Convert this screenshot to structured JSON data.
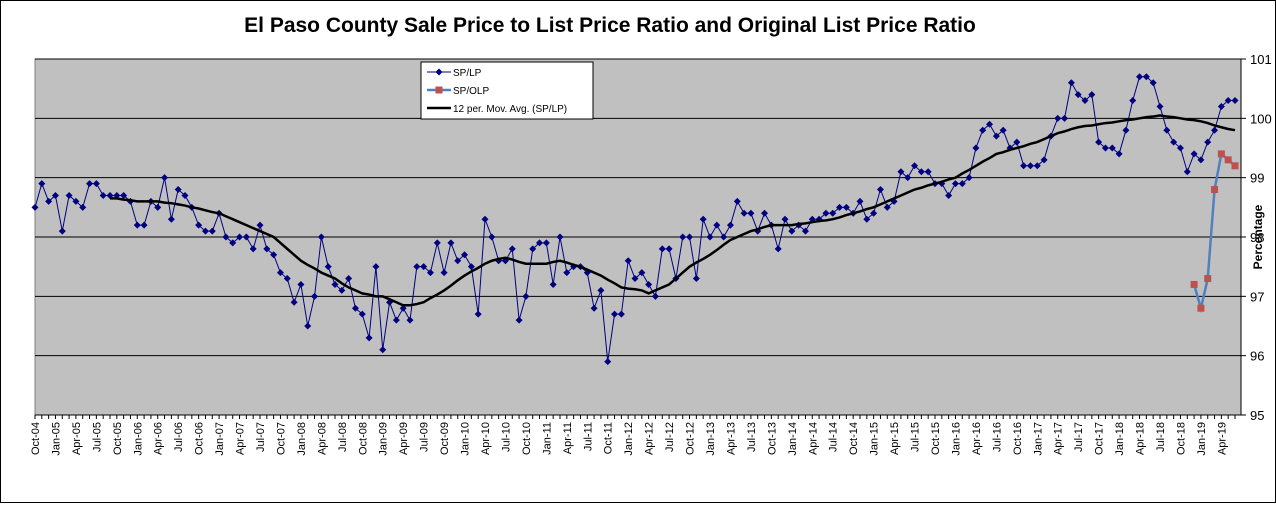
{
  "chart_data": {
    "type": "line",
    "title": "El Paso County Sale Price to List Price Ratio and Original List Price Ratio",
    "y_label": "Percentage",
    "ylim": [
      95,
      101
    ],
    "yticks": [
      95,
      96,
      97,
      98,
      99,
      100,
      101
    ],
    "grid": true,
    "y_axis_side": "right",
    "legend": "top-center",
    "plot_background": "#c0c0c0",
    "categories": [
      "Oct-04",
      null,
      null,
      "Jan-05",
      null,
      null,
      "Apr-05",
      null,
      null,
      "Jul-05",
      null,
      null,
      "Oct-05",
      null,
      null,
      "Jan-06",
      null,
      null,
      "Apr-06",
      null,
      null,
      "Jul-06",
      null,
      null,
      "Oct-06",
      null,
      null,
      "Jan-07",
      null,
      null,
      "Apr-07",
      null,
      null,
      "Jul-07",
      null,
      null,
      "Oct-07",
      null,
      null,
      "Jan-08",
      null,
      null,
      "Apr-08",
      null,
      null,
      "Jul-08",
      null,
      null,
      "Oct-08",
      null,
      null,
      "Jan-09",
      null,
      null,
      "Apr-09",
      null,
      null,
      "Jul-09",
      null,
      null,
      "Oct-09",
      null,
      null,
      "Jan-10",
      null,
      null,
      "Apr-10",
      null,
      null,
      "Jul-10",
      null,
      null,
      "Oct-10",
      null,
      null,
      "Jan-11",
      null,
      null,
      "Apr-11",
      null,
      null,
      "Jul-11",
      null,
      null,
      "Oct-11",
      null,
      null,
      "Jan-12",
      null,
      null,
      "Apr-12",
      null,
      null,
      "Jul-12",
      null,
      null,
      "Oct-12",
      null,
      null,
      "Jan-13",
      null,
      null,
      "Apr-13",
      null,
      null,
      "Jul-13",
      null,
      null,
      "Oct-13",
      null,
      null,
      "Jan-14",
      null,
      null,
      "Apr-14",
      null,
      null,
      "Jul-14",
      null,
      null,
      "Oct-14",
      null,
      null,
      "Jan-15",
      null,
      null,
      "Apr-15",
      null,
      null,
      "Jul-15",
      null,
      null,
      "Oct-15",
      null,
      null,
      "Jan-16",
      null,
      null,
      "Apr-16",
      null,
      null,
      "Jul-16",
      null,
      null,
      "Oct-16",
      null,
      null,
      "Jan-17",
      null,
      null,
      "Apr-17",
      null,
      null,
      "Jul-17",
      null,
      null,
      "Oct-17",
      null,
      null,
      "Jan-18",
      null,
      null,
      "Apr-18",
      null,
      null,
      "Jul-18",
      null,
      null,
      "Oct-18",
      null,
      null,
      "Jan-19",
      null,
      null,
      "Apr-19",
      null,
      null
    ],
    "series": [
      {
        "name": "SP/LP",
        "color": "#000080",
        "marker": "diamond",
        "marker_color": "#000080",
        "line_width": 1,
        "values": [
          98.5,
          98.9,
          98.6,
          98.7,
          98.1,
          98.7,
          98.6,
          98.5,
          98.9,
          98.9,
          98.7,
          98.7,
          98.7,
          98.7,
          98.6,
          98.2,
          98.2,
          98.6,
          98.5,
          99.0,
          98.3,
          98.8,
          98.7,
          98.5,
          98.2,
          98.1,
          98.1,
          98.4,
          98.0,
          97.9,
          98.0,
          98.0,
          97.8,
          98.2,
          97.8,
          97.7,
          97.4,
          97.3,
          96.9,
          97.2,
          96.5,
          97.0,
          98.0,
          97.5,
          97.2,
          97.1,
          97.3,
          96.8,
          96.7,
          96.3,
          97.5,
          96.1,
          96.9,
          96.6,
          96.8,
          96.6,
          97.5,
          97.5,
          97.4,
          97.9,
          97.4,
          97.9,
          97.6,
          97.7,
          97.5,
          96.7,
          98.3,
          98.0,
          97.6,
          97.6,
          97.8,
          96.6,
          97.0,
          97.8,
          97.9,
          97.9,
          97.2,
          98.0,
          97.4,
          97.5,
          97.5,
          97.4,
          96.8,
          97.1,
          95.9,
          96.7,
          96.7,
          97.6,
          97.3,
          97.4,
          97.2,
          97.0,
          97.8,
          97.8,
          97.3,
          98.0,
          98.0,
          97.3,
          98.3,
          98.0,
          98.2,
          98.0,
          98.2,
          98.6,
          98.4,
          98.4,
          98.1,
          98.4,
          98.2,
          97.8,
          98.3,
          98.1,
          98.2,
          98.1,
          98.3,
          98.3,
          98.4,
          98.4,
          98.5,
          98.5,
          98.4,
          98.6,
          98.3,
          98.4,
          98.8,
          98.5,
          98.6,
          99.1,
          99.0,
          99.2,
          99.1,
          99.1,
          98.9,
          98.9,
          98.7,
          98.9,
          98.9,
          99.0,
          99.5,
          99.8,
          99.9,
          99.7,
          99.8,
          99.5,
          99.6,
          99.2,
          99.2,
          99.2,
          99.3,
          99.7,
          100.0,
          100.0,
          100.6,
          100.4,
          100.3,
          100.4,
          99.6,
          99.5,
          99.5,
          99.4,
          99.8,
          100.3,
          100.7,
          100.7,
          100.6,
          100.2,
          99.8,
          99.6,
          99.5,
          99.1,
          99.4,
          99.3,
          99.6,
          99.8,
          100.2,
          100.3,
          100.3
        ]
      },
      {
        "name": "SP/OLP",
        "color": "#4f81bd",
        "marker": "square",
        "marker_color": "#c0504d",
        "line_width": 2.5,
        "values": [
          null,
          null,
          null,
          null,
          null,
          null,
          null,
          null,
          null,
          null,
          null,
          null,
          null,
          null,
          null,
          null,
          null,
          null,
          null,
          null,
          null,
          null,
          null,
          null,
          null,
          null,
          null,
          null,
          null,
          null,
          null,
          null,
          null,
          null,
          null,
          null,
          null,
          null,
          null,
          null,
          null,
          null,
          null,
          null,
          null,
          null,
          null,
          null,
          null,
          null,
          null,
          null,
          null,
          null,
          null,
          null,
          null,
          null,
          null,
          null,
          null,
          null,
          null,
          null,
          null,
          null,
          null,
          null,
          null,
          null,
          null,
          null,
          null,
          null,
          null,
          null,
          null,
          null,
          null,
          null,
          null,
          null,
          null,
          null,
          null,
          null,
          null,
          null,
          null,
          null,
          null,
          null,
          null,
          null,
          null,
          null,
          null,
          null,
          null,
          null,
          null,
          null,
          null,
          null,
          null,
          null,
          null,
          null,
          null,
          null,
          null,
          null,
          null,
          null,
          null,
          null,
          null,
          null,
          null,
          null,
          null,
          null,
          null,
          null,
          null,
          null,
          null,
          null,
          null,
          null,
          null,
          null,
          null,
          null,
          null,
          null,
          null,
          null,
          null,
          null,
          null,
          null,
          null,
          null,
          null,
          null,
          null,
          null,
          null,
          null,
          null,
          null,
          null,
          null,
          null,
          null,
          null,
          null,
          null,
          null,
          null,
          null,
          null,
          null,
          null,
          null,
          null,
          null,
          null,
          null,
          97.2,
          96.8,
          97.3,
          98.8,
          99.4,
          99.3,
          99.2
        ]
      },
      {
        "name": "12 per. Mov. Avg. (SP/LP)",
        "color": "#000000",
        "marker": null,
        "marker_color": null,
        "line_width": 2.5,
        "values": [
          null,
          null,
          null,
          null,
          null,
          null,
          null,
          null,
          null,
          null,
          null,
          98.65,
          98.65,
          98.63,
          98.62,
          98.6,
          98.6,
          98.6,
          98.6,
          98.58,
          98.57,
          98.55,
          98.53,
          98.5,
          98.48,
          98.45,
          98.42,
          98.4,
          98.35,
          98.3,
          98.25,
          98.2,
          98.15,
          98.1,
          98.05,
          98.0,
          97.9,
          97.8,
          97.7,
          97.6,
          97.53,
          97.47,
          97.4,
          97.35,
          97.3,
          97.22,
          97.15,
          97.1,
          97.05,
          97.03,
          97.0,
          97.0,
          96.95,
          96.9,
          96.85,
          96.85,
          96.87,
          96.9,
          96.97,
          97.03,
          97.1,
          97.18,
          97.27,
          97.35,
          97.42,
          97.48,
          97.55,
          97.6,
          97.63,
          97.65,
          97.62,
          97.58,
          97.55,
          97.55,
          97.55,
          97.55,
          97.58,
          97.6,
          97.57,
          97.53,
          97.5,
          97.45,
          97.4,
          97.35,
          97.28,
          97.22,
          97.15,
          97.13,
          97.12,
          97.1,
          97.05,
          97.1,
          97.15,
          97.2,
          97.3,
          97.4,
          97.5,
          97.57,
          97.63,
          97.7,
          97.78,
          97.87,
          97.95,
          98.0,
          98.05,
          98.1,
          98.13,
          98.17,
          98.2,
          98.2,
          98.2,
          98.2,
          98.22,
          98.23,
          98.25,
          98.27,
          98.28,
          98.3,
          98.33,
          98.37,
          98.4,
          98.43,
          98.47,
          98.5,
          98.55,
          98.6,
          98.65,
          98.7,
          98.75,
          98.8,
          98.83,
          98.87,
          98.9,
          98.93,
          98.97,
          99.0,
          99.07,
          99.13,
          99.2,
          99.27,
          99.33,
          99.4,
          99.43,
          99.47,
          99.5,
          99.53,
          99.57,
          99.6,
          99.65,
          99.7,
          99.75,
          99.78,
          99.82,
          99.85,
          99.87,
          99.88,
          99.9,
          99.92,
          99.93,
          99.95,
          99.97,
          99.98,
          100.0,
          100.02,
          100.03,
          100.05,
          100.03,
          100.02,
          100.0,
          99.98,
          99.97,
          99.95,
          99.92,
          99.88,
          99.85,
          99.82,
          99.8
        ]
      }
    ]
  }
}
